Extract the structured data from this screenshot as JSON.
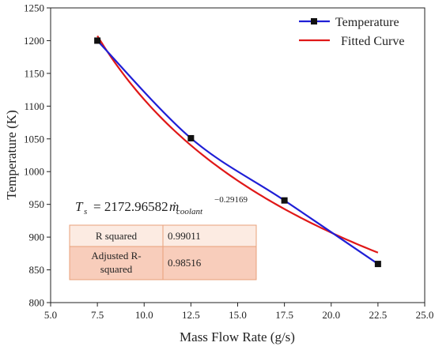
{
  "chart_data": {
    "type": "line",
    "title": "",
    "xlabel": "Mass Flow Rate (g/s)",
    "ylabel": "Temperature (K)",
    "xlim": [
      5.0,
      25.0
    ],
    "ylim": [
      800,
      1250
    ],
    "xticks": [
      "5.0",
      "7.5",
      "10.0",
      "12.5",
      "15.0",
      "17.5",
      "20.0",
      "22.5",
      "25.0"
    ],
    "yticks": [
      "800",
      "850",
      "900",
      "950",
      "1000",
      "1050",
      "1100",
      "1150",
      "1200",
      "1250"
    ],
    "grid": false,
    "legend_position": "top-right",
    "series": [
      {
        "name": "Temperature",
        "color": "#1f1fd6",
        "marker": "square",
        "x": [
          7.5,
          12.5,
          17.5,
          22.5
        ],
        "y": [
          1200,
          1051,
          956,
          859
        ]
      },
      {
        "name": "Fitted Curve",
        "color": "#e01818",
        "model": {
          "coefficient": 2172.96582,
          "exponent": -0.29169
        },
        "x_range": [
          7.5,
          22.5
        ]
      }
    ],
    "equation": {
      "lhs": "T",
      "lhs_sub": "s",
      "rhs": "= 2172.96582",
      "var": "ṁ",
      "var_sub": "coolant",
      "exponent": "−0.29169"
    },
    "fit_table": [
      {
        "label": "R squared",
        "value": "0.99011"
      },
      {
        "label": "Adjusted R-squared",
        "label_lines": [
          "Adjusted R-",
          "squared"
        ],
        "value": "0.98516"
      }
    ],
    "table_colors": {
      "row1": "#fcebe2",
      "row2": "#f8cdbb",
      "border": "#e9a07a"
    }
  }
}
